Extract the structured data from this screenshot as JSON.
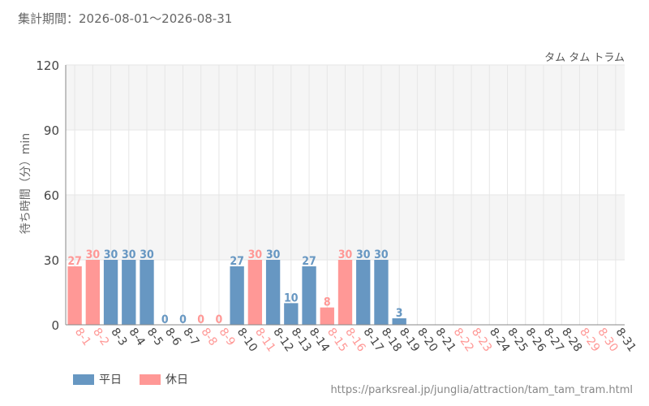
{
  "period_text": "集計期間：2026-08-01～2026-08-31",
  "source_url": "https://parksreal.jp/junglia/attraction/tam_tam_tram.html",
  "colors": {
    "weekday": "#6797c2",
    "holiday": "#ff9896",
    "grid": "#e6e6e6",
    "band": "#f5f5f5"
  },
  "chart_data": {
    "type": "bar",
    "title": "タム タム トラム",
    "xlabel": "",
    "ylabel": "待ち時間（分）min",
    "ylim": [
      0,
      120
    ],
    "yticks": [
      0,
      30,
      60,
      90,
      120
    ],
    "grid": true,
    "legend_position": "bottom-left",
    "categories": [
      "8-1",
      "8-2",
      "8-3",
      "8-4",
      "8-5",
      "8-6",
      "8-7",
      "8-8",
      "8-9",
      "8-10",
      "8-11",
      "8-12",
      "8-13",
      "8-14",
      "8-15",
      "8-16",
      "8-17",
      "8-18",
      "8-19",
      "8-20",
      "8-21",
      "8-22",
      "8-23",
      "8-24",
      "8-25",
      "8-26",
      "8-27",
      "8-28",
      "8-29",
      "8-30",
      "8-31"
    ],
    "values": [
      27,
      30,
      30,
      30,
      30,
      0,
      0,
      0,
      0,
      27,
      30,
      30,
      10,
      27,
      8,
      30,
      30,
      30,
      3,
      null,
      null,
      null,
      null,
      null,
      null,
      null,
      null,
      null,
      null,
      null,
      null
    ],
    "day_types": [
      "holiday",
      "holiday",
      "weekday",
      "weekday",
      "weekday",
      "weekday",
      "weekday",
      "holiday",
      "holiday",
      "weekday",
      "holiday",
      "weekday",
      "weekday",
      "weekday",
      "holiday",
      "holiday",
      "weekday",
      "weekday",
      "weekday",
      "weekday",
      "weekday",
      "holiday",
      "holiday",
      "weekday",
      "weekday",
      "weekday",
      "weekday",
      "weekday",
      "holiday",
      "holiday",
      "weekday"
    ],
    "series": [
      {
        "name": "平日",
        "key": "weekday"
      },
      {
        "name": "休日",
        "key": "holiday"
      }
    ]
  }
}
